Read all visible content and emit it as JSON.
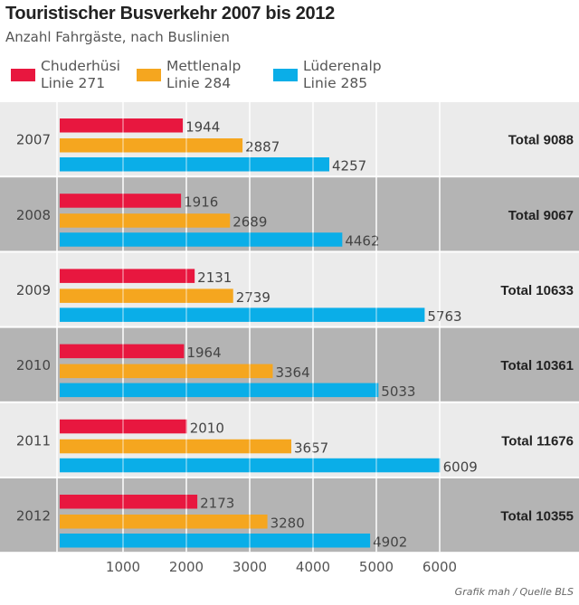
{
  "chart_data": {
    "type": "bar",
    "orientation": "horizontal",
    "title": "Touristischer Busverkehr 2007 bis 2012",
    "subtitle": "Anzahl Fahrgäste, nach Buslinien",
    "categories": [
      "2007",
      "2008",
      "2009",
      "2010",
      "2011",
      "2012"
    ],
    "series": [
      {
        "name": "Chuderhüsi",
        "line": "Linie 271",
        "color": "#e8173f",
        "values": [
          1944,
          1916,
          2131,
          1964,
          2010,
          2173
        ]
      },
      {
        "name": "Mettlenalp",
        "line": "Linie 284",
        "color": "#f5a61f",
        "values": [
          2887,
          2689,
          2739,
          3364,
          3657,
          3280
        ]
      },
      {
        "name": "Lüderenalp",
        "line": "Linie 285",
        "color": "#0aaee8",
        "values": [
          4257,
          4462,
          5763,
          5033,
          6009,
          4902
        ]
      }
    ],
    "totals": [
      "Total 9088",
      "Total 9067",
      "Total 10633",
      "Total 10361",
      "Total 11676",
      "Total 10355"
    ],
    "xlim": [
      0,
      6000
    ],
    "xticks": [
      "1000",
      "2000",
      "3000",
      "4000",
      "5000",
      "6000"
    ],
    "grid": true,
    "legend": "top",
    "band_colors": [
      "#ebebeb",
      "#b4b4b4"
    ],
    "source": "Grafik mah / Quelle BLS"
  }
}
